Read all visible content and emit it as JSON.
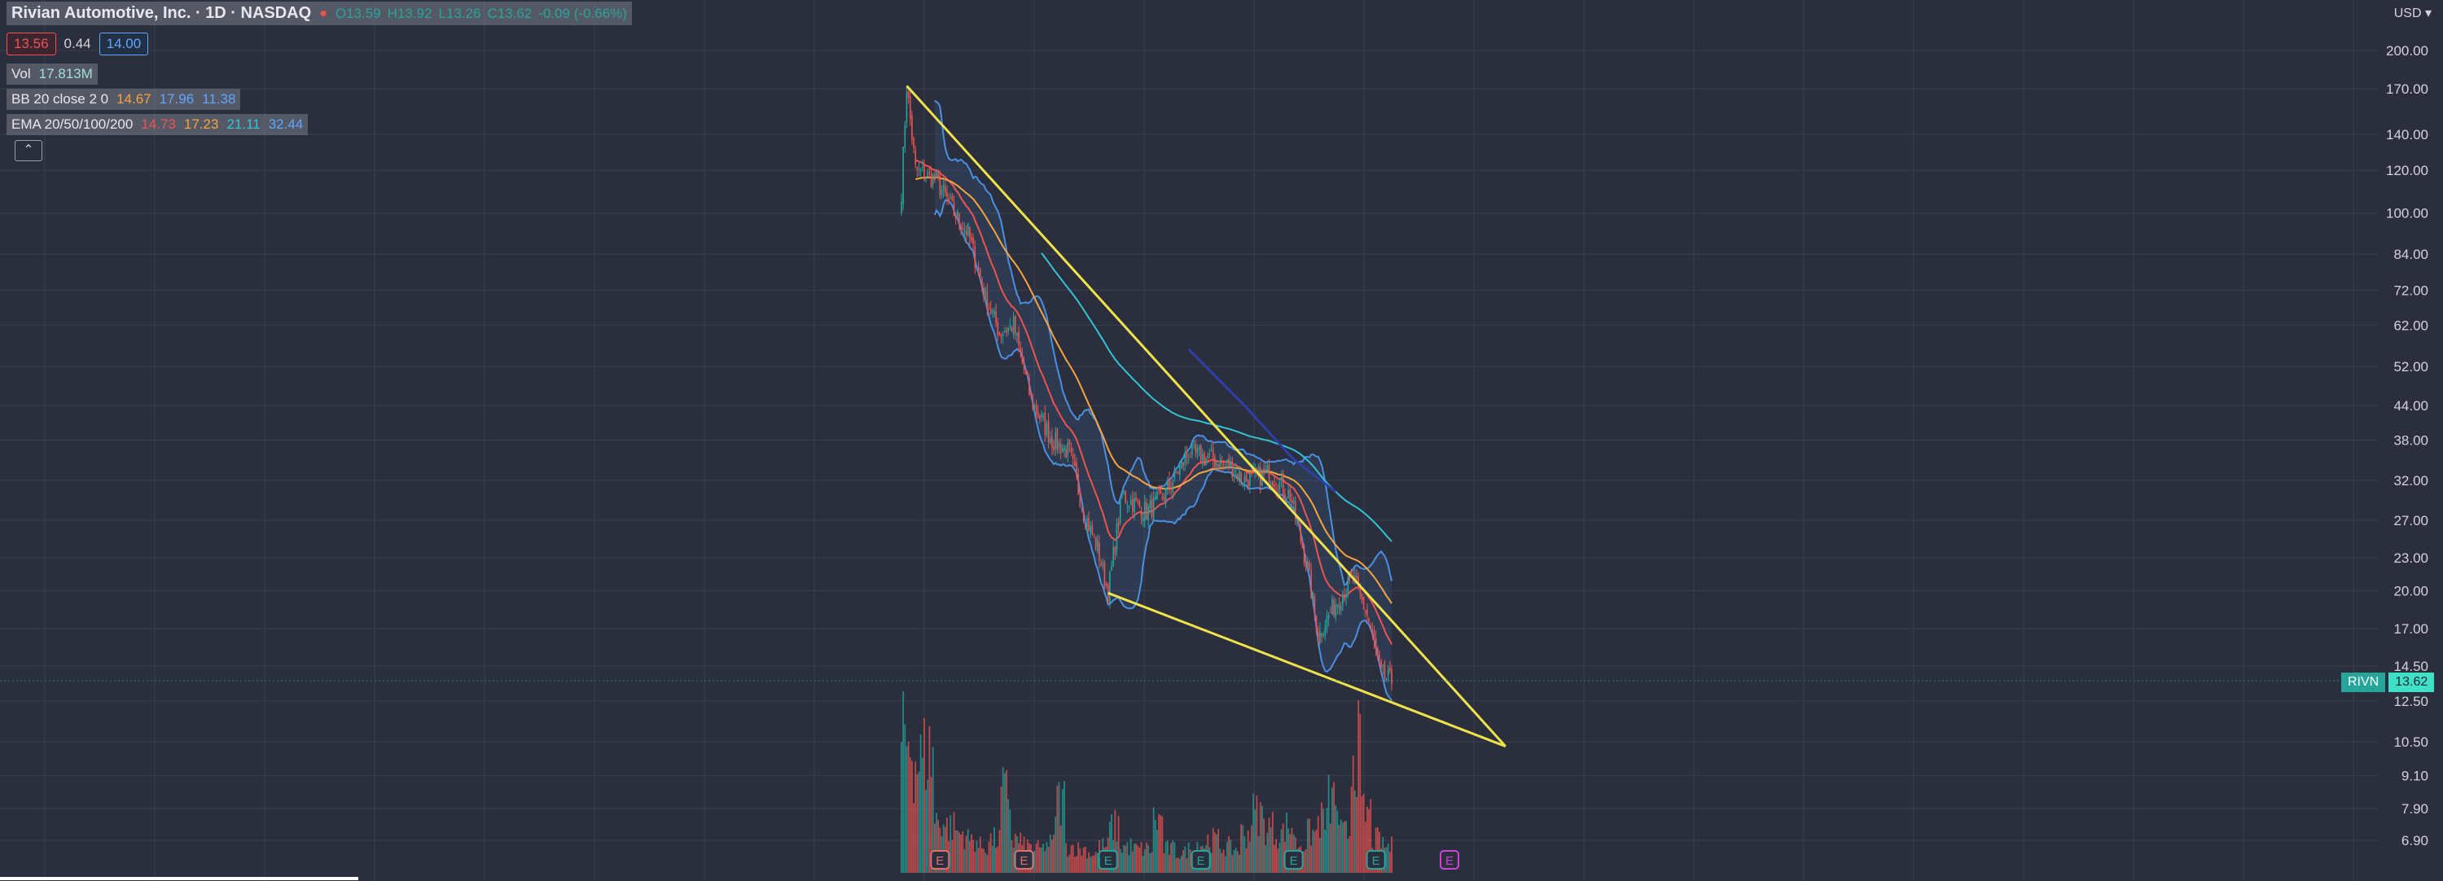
{
  "header": {
    "symbol_title": "Rivian Automotive, Inc. · 1D · NASDAQ",
    "open": "O13.59",
    "high": "H13.92",
    "low": "L13.26",
    "close": "C13.62",
    "change": "-0.09 (-0.66%)",
    "bid": "13.56",
    "spread": "0.44",
    "ask": "14.00",
    "vol_label": "Vol",
    "vol_value": "17.813M",
    "bb_label": "BB 20 close 2 0",
    "bb_values": [
      "14.67",
      "17.96",
      "11.38"
    ],
    "ema_label": "EMA 20/50/100/200",
    "ema_values": [
      "14.73",
      "17.23",
      "21.11",
      "32.44"
    ],
    "currency": "USD",
    "ticker_tag": "RIVN",
    "last_price": "13.62"
  },
  "colors": {
    "background": "#2a2e3d",
    "grid": "#3a3f52",
    "up": "#26a69a",
    "down": "#ef5350",
    "bollinger": "#4a90e2",
    "ema20": "#ef5350",
    "ema50": "#f7a440",
    "ema100": "#33c3d5",
    "ema200": "#2f3fa8",
    "trendline": "#f0e34a",
    "earnings": "#e07070"
  },
  "chart_data": {
    "type": "candlestick",
    "scale": "log",
    "y_ticks": [
      200,
      170,
      140,
      120,
      100,
      84,
      72,
      62,
      52,
      44,
      38,
      32,
      27,
      23,
      20,
      17,
      14.5,
      12.5,
      10.5,
      9.1,
      7.9,
      6.9
    ],
    "y_tick_labels": [
      "200.00",
      "170.00",
      "140.00",
      "120.00",
      "100.00",
      "84.00",
      "72.00",
      "62.00",
      "52.00",
      "44.00",
      "38.00",
      "32.00",
      "27.00",
      "23.00",
      "20.00",
      "17.00",
      "14.50",
      "12.50",
      "10.50",
      "9.10",
      "7.90",
      "6.90"
    ],
    "price_path_anchors": [
      [
        0,
        110
      ],
      [
        3,
        172
      ],
      [
        8,
        120
      ],
      [
        20,
        115
      ],
      [
        30,
        100
      ],
      [
        38,
        92
      ],
      [
        48,
        70
      ],
      [
        56,
        60
      ],
      [
        64,
        62
      ],
      [
        74,
        45
      ],
      [
        86,
        38
      ],
      [
        96,
        36
      ],
      [
        104,
        28
      ],
      [
        112,
        24
      ],
      [
        118,
        19.8
      ],
      [
        126,
        30
      ],
      [
        140,
        28
      ],
      [
        150,
        30
      ],
      [
        164,
        36
      ],
      [
        176,
        35
      ],
      [
        188,
        34
      ],
      [
        196,
        32
      ],
      [
        210,
        33
      ],
      [
        222,
        30
      ],
      [
        232,
        22
      ],
      [
        238,
        16.5
      ],
      [
        248,
        19
      ],
      [
        258,
        21
      ],
      [
        266,
        18
      ],
      [
        274,
        14
      ],
      [
        280,
        13.6
      ]
    ],
    "ema200_anchors": [
      [
        164,
        56
      ],
      [
        196,
        44
      ],
      [
        224,
        35
      ],
      [
        248,
        30.5
      ]
    ],
    "trendlines": [
      {
        "from": [
          3,
          172
        ],
        "to": [
          345,
          10.3
        ]
      },
      {
        "from": [
          118,
          19.8
        ],
        "to": [
          345,
          10.3
        ]
      }
    ],
    "volume_profile": [
      100,
      85,
      90,
      40,
      35,
      30,
      25,
      20,
      25,
      60,
      25,
      20,
      18,
      22,
      55,
      20,
      18,
      15,
      20,
      35,
      20,
      18,
      18,
      40,
      18,
      15,
      18,
      22,
      25,
      20,
      18,
      30,
      45,
      35,
      30,
      35,
      22,
      30,
      40,
      55,
      30,
      95,
      45,
      25,
      20
    ],
    "earnings_markers": [
      {
        "bar": 22,
        "type": "negative"
      },
      {
        "bar": 70,
        "type": "negative"
      },
      {
        "bar": 118,
        "type": "positive"
      },
      {
        "bar": 171,
        "type": "positive"
      },
      {
        "bar": 224,
        "type": "positive"
      },
      {
        "bar": 271,
        "type": "positive"
      },
      {
        "bar": 313,
        "type": "upcoming"
      }
    ]
  }
}
